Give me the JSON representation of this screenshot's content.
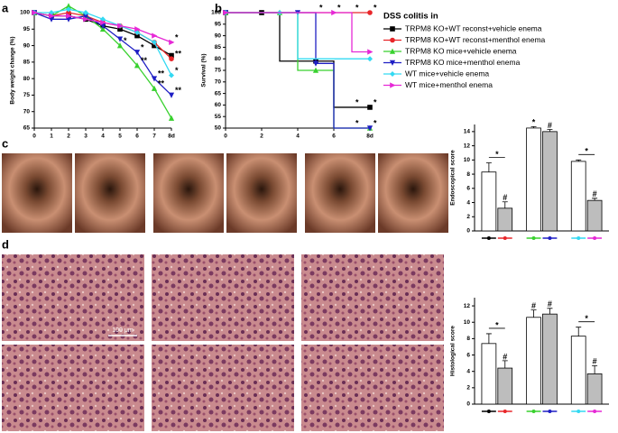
{
  "panel_labels": [
    "a",
    "b",
    "c",
    "d"
  ],
  "scale_bar": "100 μm",
  "legend_title": "DSS colitis in",
  "chart_data": [
    {
      "type": "line",
      "ylabel": "Body weight change (%)",
      "x": [
        0,
        1,
        2,
        3,
        4,
        5,
        6,
        7,
        8
      ],
      "xlim": [
        0,
        8
      ],
      "xticks": [
        0,
        1,
        2,
        3,
        4,
        5,
        6,
        7,
        {
          "value": 8,
          "label": "8d"
        }
      ],
      "ylim": [
        65,
        100
      ],
      "yticks": [
        65,
        70,
        75,
        80,
        85,
        90,
        95,
        100
      ],
      "series": [
        {
          "name": "TRPM8 KO+WT reconst+vehicle enema",
          "color": "#000000",
          "marker": "square",
          "values": [
            100,
            99,
            99,
            98,
            96,
            95,
            93,
            90,
            87
          ]
        },
        {
          "name": "TRPM8 KO+WT reconst+menthol enema",
          "color": "#e8262a",
          "marker": "circle",
          "values": [
            100,
            99,
            100,
            99,
            97,
            96,
            94,
            91,
            86
          ]
        },
        {
          "name": "TRPM8 KO mice+vehicle enema",
          "color": "#39d12f",
          "marker": "triangle",
          "values": [
            100,
            99,
            102,
            99,
            95,
            90,
            84,
            77,
            68
          ]
        },
        {
          "name": "TRPM8 KO mice+menthol enema",
          "color": "#1f1fc4",
          "marker": "down",
          "values": [
            100,
            98,
            98,
            99,
            96,
            92,
            88,
            80,
            75
          ]
        },
        {
          "name": "WT mice+vehicle enema",
          "color": "#33d9f2",
          "marker": "diamond",
          "values": [
            100,
            100,
            101,
            100,
            98,
            96,
            94,
            91,
            81
          ]
        },
        {
          "name": "WT mice+menthol enema",
          "color": "#e629d6",
          "marker": "right",
          "values": [
            100,
            99,
            99,
            98,
            97,
            96,
            95,
            93,
            91
          ]
        }
      ],
      "annotations": [
        {
          "text": "*",
          "series": 2,
          "index": 5
        },
        {
          "text": "*",
          "series": 3,
          "index": 6
        },
        {
          "text": "**",
          "series": 2,
          "index": 6
        },
        {
          "text": "**",
          "series": 3,
          "index": 7
        },
        {
          "text": "**",
          "series": 2,
          "index": 7
        },
        {
          "text": "*",
          "series": 5,
          "index": 8
        },
        {
          "text": "**",
          "series": 1,
          "index": 8
        },
        {
          "text": "*",
          "series": 4,
          "index": 8
        },
        {
          "text": "**",
          "series": 3,
          "index": 8
        }
      ]
    },
    {
      "type": "line",
      "step": true,
      "ylabel": "Survival (%)",
      "x": [
        0,
        1,
        2,
        3,
        4,
        5,
        6,
        7,
        8
      ],
      "xlim": [
        0,
        8
      ],
      "xticks": [
        0,
        2,
        4,
        6,
        {
          "value": 8,
          "label": "8d"
        }
      ],
      "ylim": [
        50,
        100
      ],
      "yticks": [
        50,
        55,
        60,
        65,
        70,
        75,
        80,
        85,
        90,
        95,
        100
      ],
      "series": [
        {
          "color": "#000000",
          "marker": "square",
          "values": [
            100,
            100,
            100,
            79,
            79,
            79,
            59,
            59,
            59
          ]
        },
        {
          "color": "#e8262a",
          "marker": "circle",
          "values": [
            100,
            100,
            100,
            100,
            100,
            100,
            100,
            100,
            100
          ]
        },
        {
          "color": "#39d12f",
          "marker": "triangle",
          "values": [
            100,
            100,
            100,
            100,
            75,
            75,
            50,
            50,
            50
          ]
        },
        {
          "color": "#1f1fc4",
          "marker": "down",
          "values": [
            100,
            100,
            100,
            100,
            100,
            78,
            50,
            50,
            50
          ]
        },
        {
          "color": "#33d9f2",
          "marker": "diamond",
          "values": [
            100,
            100,
            100,
            100,
            80,
            80,
            80,
            80,
            80
          ]
        },
        {
          "color": "#e629d6",
          "marker": "right",
          "values": [
            100,
            100,
            100,
            100,
            100,
            100,
            100,
            83,
            83
          ]
        }
      ],
      "annotations": [
        {
          "text": "*",
          "series": 1,
          "index": 5
        },
        {
          "text": "*",
          "series": 1,
          "index": 6
        },
        {
          "text": "*",
          "series": 1,
          "index": 7
        },
        {
          "text": "*",
          "series": 1,
          "index": 8
        },
        {
          "text": "*",
          "series": 0,
          "index": 7
        },
        {
          "text": "*",
          "series": 0,
          "index": 8
        },
        {
          "text": "*",
          "series": 3,
          "index": 7
        },
        {
          "text": "*",
          "series": 3,
          "index": 8
        }
      ]
    },
    {
      "type": "bar",
      "ylabel": "Endoscopical score",
      "ylim": [
        0,
        15
      ],
      "yticks": [
        0,
        2,
        4,
        6,
        8,
        10,
        12,
        14
      ],
      "values": [
        8.3,
        3.2,
        14.5,
        14,
        9.8,
        4.3
      ],
      "errors": [
        1.3,
        0.9,
        0.2,
        0.3,
        0.2,
        0.3
      ],
      "colors": [
        "#ffffff",
        "#bdbdbd",
        "#ffffff",
        "#bdbdbd",
        "#ffffff",
        "#bdbdbd"
      ],
      "annotations": [
        {
          "text": "*",
          "bars": [
            0,
            1
          ]
        },
        {
          "text": "#",
          "bar": 1
        },
        {
          "text": "*",
          "bar": 2
        },
        {
          "text": "#",
          "bar": 3
        },
        {
          "text": "*",
          "bars": [
            4,
            5
          ]
        },
        {
          "text": "#",
          "bar": 5
        }
      ]
    },
    {
      "type": "bar",
      "ylabel": "Histological score",
      "ylim": [
        0,
        13
      ],
      "yticks": [
        0,
        2,
        4,
        6,
        8,
        10,
        12
      ],
      "values": [
        7.4,
        4.4,
        10.6,
        11,
        8.3,
        3.7
      ],
      "errors": [
        1.2,
        0.9,
        0.9,
        0.7,
        1.1,
        1.0
      ],
      "colors": [
        "#ffffff",
        "#bdbdbd",
        "#ffffff",
        "#bdbdbd",
        "#ffffff",
        "#bdbdbd"
      ],
      "annotations": [
        {
          "text": "*",
          "bars": [
            0,
            1
          ]
        },
        {
          "text": "#",
          "bar": 1
        },
        {
          "text": "#",
          "bar": 2
        },
        {
          "text": "#",
          "bar": 3
        },
        {
          "text": "*",
          "bars": [
            4,
            5
          ]
        },
        {
          "text": "#",
          "bar": 5
        }
      ]
    }
  ]
}
